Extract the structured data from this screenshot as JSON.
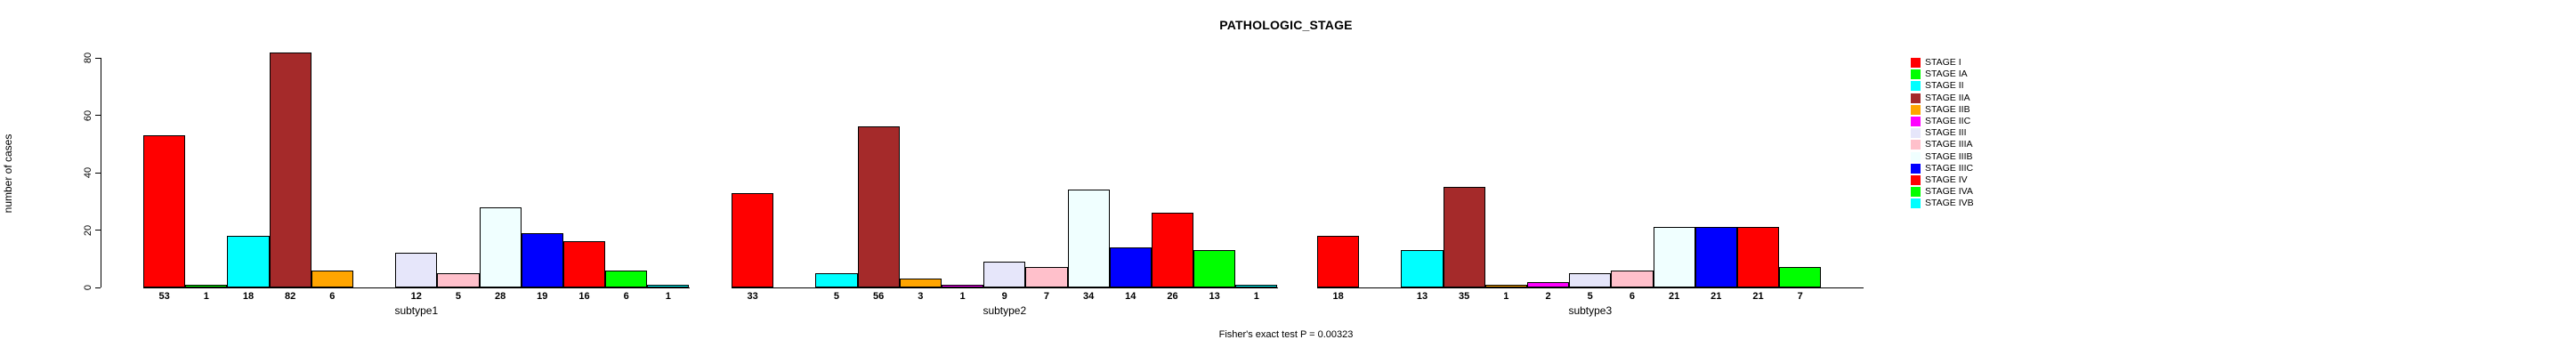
{
  "title": "PATHOLOGIC_STAGE",
  "caption": "Fisher's exact test P = 0.00323",
  "chart_data": {
    "type": "bar",
    "title": "PATHOLOGIC_STAGE",
    "xlabel": "",
    "ylabel": "number of cases",
    "ylim": [
      0,
      80
    ],
    "yticks": [
      0,
      20,
      40,
      60,
      80
    ],
    "grid": false,
    "legend_position": "right",
    "bar_value_labels": true,
    "categories": [
      "STAGE I",
      "STAGE IA",
      "STAGE II",
      "STAGE IIA",
      "STAGE IIB",
      "STAGE IIC",
      "STAGE III",
      "STAGE IIIA",
      "STAGE IIIB",
      "STAGE IIIC",
      "STAGE IV",
      "STAGE IVA",
      "STAGE IVB"
    ],
    "colors": [
      "#FF0000",
      "#00FF00",
      "#00FFFF",
      "#A52A2A",
      "#FFA500",
      "#FF00FF",
      "#E6E6FA",
      "#FFC0CB",
      "#F0FFFF",
      "#0000FF",
      "#FF0000",
      "#00FF00",
      "#00FFFF"
    ],
    "series": [
      {
        "name": "subtype1",
        "values": [
          53,
          1,
          18,
          82,
          6,
          0,
          12,
          5,
          28,
          19,
          16,
          6,
          1
        ]
      },
      {
        "name": "subtype2",
        "values": [
          33,
          0,
          5,
          56,
          3,
          1,
          9,
          7,
          34,
          14,
          26,
          13,
          1
        ]
      },
      {
        "name": "subtype3",
        "values": [
          18,
          0,
          13,
          35,
          1,
          2,
          5,
          6,
          21,
          21,
          21,
          7,
          0
        ]
      }
    ],
    "annotation": "Fisher's exact test P = 0.00323"
  }
}
